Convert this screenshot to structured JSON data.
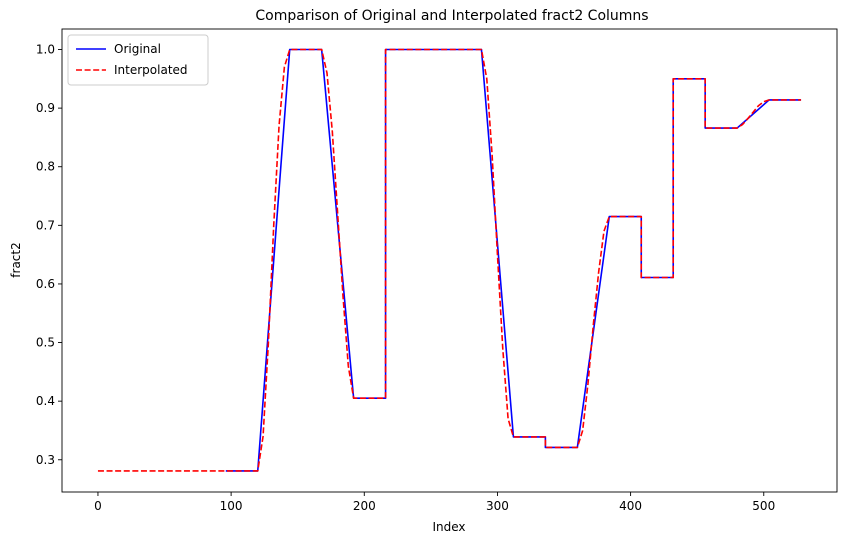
{
  "chart_data": {
    "type": "line",
    "title": "Comparison of Original and Interpolated fract2 Columns",
    "xlabel": "Index",
    "ylabel": "fract2",
    "xlim": [
      -27,
      555
    ],
    "ylim": [
      0.245,
      1.035
    ],
    "xticks": [
      0,
      100,
      200,
      300,
      400,
      500
    ],
    "yticks": [
      0.3,
      0.4,
      0.5,
      0.6,
      0.7,
      0.8,
      0.9,
      1.0
    ],
    "ytick_labels": [
      "0.3",
      "0.4",
      "0.5",
      "0.6",
      "0.7",
      "0.8",
      "0.9",
      "1.0"
    ],
    "grid": false,
    "legend": "upper-left",
    "series": [
      {
        "name": "Original",
        "color": "#0000ff",
        "style": "solid",
        "points": [
          [
            96,
            0.281
          ],
          [
            120,
            0.281
          ],
          [
            144,
            1.0
          ],
          [
            168,
            1.0
          ],
          [
            192,
            0.405
          ],
          [
            216,
            0.405
          ],
          [
            216,
            1.0
          ],
          [
            288,
            1.0
          ],
          [
            312,
            0.339
          ],
          [
            336,
            0.339
          ],
          [
            336,
            0.321
          ],
          [
            360,
            0.321
          ],
          [
            384,
            0.715
          ],
          [
            408,
            0.715
          ],
          [
            408,
            0.611
          ],
          [
            432,
            0.611
          ],
          [
            432,
            0.95
          ],
          [
            456,
            0.95
          ],
          [
            456,
            0.866
          ],
          [
            480,
            0.866
          ],
          [
            504,
            0.914
          ],
          [
            528,
            0.914
          ]
        ]
      },
      {
        "name": "Interpolated",
        "color": "#ff0000",
        "style": "dashed",
        "points": [
          [
            0,
            0.281
          ],
          [
            120,
            0.281
          ],
          [
            124,
            0.34
          ],
          [
            128,
            0.5
          ],
          [
            132,
            0.7
          ],
          [
            136,
            0.87
          ],
          [
            140,
            0.97
          ],
          [
            144,
            1.0
          ],
          [
            168,
            1.0
          ],
          [
            172,
            0.96
          ],
          [
            176,
            0.86
          ],
          [
            180,
            0.72
          ],
          [
            184,
            0.58
          ],
          [
            188,
            0.46
          ],
          [
            192,
            0.405
          ],
          [
            216,
            0.405
          ],
          [
            216,
            1.0
          ],
          [
            288,
            1.0
          ],
          [
            292,
            0.95
          ],
          [
            296,
            0.82
          ],
          [
            300,
            0.65
          ],
          [
            304,
            0.49
          ],
          [
            308,
            0.37
          ],
          [
            312,
            0.339
          ],
          [
            336,
            0.339
          ],
          [
            336,
            0.321
          ],
          [
            360,
            0.321
          ],
          [
            364,
            0.35
          ],
          [
            368,
            0.43
          ],
          [
            372,
            0.53
          ],
          [
            376,
            0.62
          ],
          [
            380,
            0.69
          ],
          [
            384,
            0.715
          ],
          [
            408,
            0.715
          ],
          [
            408,
            0.611
          ],
          [
            432,
            0.611
          ],
          [
            432,
            0.95
          ],
          [
            456,
            0.95
          ],
          [
            456,
            0.866
          ],
          [
            480,
            0.866
          ],
          [
            484,
            0.872
          ],
          [
            488,
            0.882
          ],
          [
            492,
            0.893
          ],
          [
            496,
            0.904
          ],
          [
            500,
            0.911
          ],
          [
            504,
            0.914
          ],
          [
            528,
            0.914
          ]
        ]
      }
    ]
  }
}
